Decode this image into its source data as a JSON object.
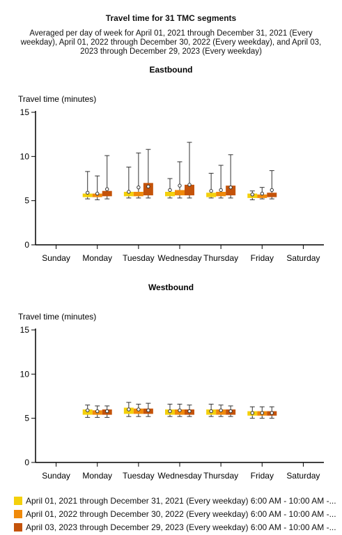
{
  "title": "Travel time for 31 TMC segments",
  "subtitle": "Averaged per day of week for April 01, 2021 through December 31, 2021 (Every weekday), April 01, 2022 through December 30, 2022 (Every weekday), and April 03, 2023 through December 29, 2023 (Every weekday)",
  "legend": [
    {
      "label": "April 01, 2021 through December 31, 2021 (Every weekday) 6:00 AM - 10:00 AM -...",
      "color": "#f4d00c"
    },
    {
      "label": "April 01, 2022 through December 30, 2022 (Every weekday) 6:00 AM - 10:00 AM -...",
      "color": "#f08a0b"
    },
    {
      "label": "April 03, 2023 through December 29, 2023 (Every weekday) 6:00 AM - 10:00 AM -...",
      "color": "#c4530a"
    }
  ],
  "chart_data": [
    {
      "type": "box",
      "title": "Eastbound",
      "ylabel": "Travel time (minutes)",
      "ylim": [
        0,
        15
      ],
      "yticks": [
        0,
        5,
        10,
        15
      ],
      "categories": [
        "Sunday",
        "Monday",
        "Tuesday",
        "Wednesday",
        "Thursday",
        "Friday",
        "Saturday"
      ],
      "series": [
        {
          "color": "#f4d00c",
          "data": [
            null,
            {
              "min": 5.2,
              "q1": 5.4,
              "median": 5.6,
              "q3": 5.8,
              "max": 8.3,
              "mean": 5.9
            },
            {
              "min": 5.3,
              "q1": 5.5,
              "median": 5.7,
              "q3": 6.0,
              "max": 8.8,
              "mean": 6.0
            },
            {
              "min": 5.3,
              "q1": 5.5,
              "median": 5.7,
              "q3": 6.0,
              "max": 7.5,
              "mean": 6.2
            },
            {
              "min": 5.3,
              "q1": 5.4,
              "median": 5.6,
              "q3": 5.9,
              "max": 8.1,
              "mean": 6.1
            },
            {
              "min": 5.1,
              "q1": 5.3,
              "median": 5.5,
              "q3": 5.8,
              "max": 6.1,
              "mean": 5.7
            },
            null
          ]
        },
        {
          "color": "#f08a0b",
          "data": [
            null,
            {
              "min": 5.1,
              "q1": 5.4,
              "median": 5.6,
              "q3": 5.8,
              "max": 7.8,
              "mean": 5.8
            },
            {
              "min": 5.3,
              "q1": 5.5,
              "median": 5.8,
              "q3": 6.0,
              "max": 10.4,
              "mean": 6.5
            },
            {
              "min": 5.3,
              "q1": 5.6,
              "median": 5.9,
              "q3": 6.2,
              "max": 9.4,
              "mean": 6.7
            },
            {
              "min": 5.3,
              "q1": 5.5,
              "median": 5.7,
              "q3": 6.0,
              "max": 9.0,
              "mean": 6.2
            },
            {
              "min": 5.2,
              "q1": 5.3,
              "median": 5.5,
              "q3": 5.7,
              "max": 6.5,
              "mean": 5.8
            },
            null
          ]
        },
        {
          "color": "#c4530a",
          "data": [
            null,
            {
              "min": 5.2,
              "q1": 5.5,
              "median": 5.8,
              "q3": 6.1,
              "max": 10.1,
              "mean": 6.3
            },
            {
              "min": 5.3,
              "q1": 5.6,
              "median": 6.2,
              "q3": 7.0,
              "max": 10.8,
              "mean": 6.6
            },
            {
              "min": 5.3,
              "q1": 5.6,
              "median": 6.2,
              "q3": 6.8,
              "max": 11.6,
              "mean": 6.8
            },
            {
              "min": 5.3,
              "q1": 5.6,
              "median": 6.1,
              "q3": 6.7,
              "max": 10.2,
              "mean": 6.5
            },
            {
              "min": 5.2,
              "q1": 5.4,
              "median": 5.6,
              "q3": 5.9,
              "max": 8.4,
              "mean": 6.2
            },
            null
          ]
        }
      ]
    },
    {
      "type": "box",
      "title": "Westbound",
      "ylabel": "Travel time (minutes)",
      "ylim": [
        0,
        15
      ],
      "yticks": [
        0,
        5,
        10,
        15
      ],
      "categories": [
        "Sunday",
        "Monday",
        "Tuesday",
        "Wednesday",
        "Thursday",
        "Friday",
        "Saturday"
      ],
      "series": [
        {
          "color": "#f4d00c",
          "data": [
            null,
            {
              "min": 5.1,
              "q1": 5.4,
              "median": 5.7,
              "q3": 6.0,
              "max": 6.5,
              "mean": 5.9
            },
            {
              "min": 5.2,
              "q1": 5.5,
              "median": 5.8,
              "q3": 6.2,
              "max": 6.8,
              "mean": 6.0
            },
            {
              "min": 5.2,
              "q1": 5.4,
              "median": 5.7,
              "q3": 6.0,
              "max": 6.6,
              "mean": 5.8
            },
            {
              "min": 5.2,
              "q1": 5.4,
              "median": 5.7,
              "q3": 6.0,
              "max": 6.6,
              "mean": 5.8
            },
            {
              "min": 5.0,
              "q1": 5.3,
              "median": 5.5,
              "q3": 5.8,
              "max": 6.3,
              "mean": 5.6
            },
            null
          ]
        },
        {
          "color": "#f08a0b",
          "data": [
            null,
            {
              "min": 5.1,
              "q1": 5.4,
              "median": 5.7,
              "q3": 5.9,
              "max": 6.4,
              "mean": 5.8
            },
            {
              "min": 5.2,
              "q1": 5.5,
              "median": 5.8,
              "q3": 6.1,
              "max": 6.6,
              "mean": 6.0
            },
            {
              "min": 5.2,
              "q1": 5.4,
              "median": 5.7,
              "q3": 6.0,
              "max": 6.6,
              "mean": 5.9
            },
            {
              "min": 5.2,
              "q1": 5.4,
              "median": 5.7,
              "q3": 6.0,
              "max": 6.5,
              "mean": 5.9
            },
            {
              "min": 5.0,
              "q1": 5.3,
              "median": 5.5,
              "q3": 5.8,
              "max": 6.3,
              "mean": 5.6
            },
            null
          ]
        },
        {
          "color": "#c4530a",
          "data": [
            null,
            {
              "min": 5.1,
              "q1": 5.4,
              "median": 5.7,
              "q3": 6.0,
              "max": 6.4,
              "mean": 5.8
            },
            {
              "min": 5.2,
              "q1": 5.5,
              "median": 5.8,
              "q3": 6.1,
              "max": 6.7,
              "mean": 5.9
            },
            {
              "min": 5.2,
              "q1": 5.4,
              "median": 5.7,
              "q3": 6.0,
              "max": 6.5,
              "mean": 5.8
            },
            {
              "min": 5.2,
              "q1": 5.4,
              "median": 5.7,
              "q3": 6.0,
              "max": 6.4,
              "mean": 5.8
            },
            {
              "min": 5.0,
              "q1": 5.3,
              "median": 5.5,
              "q3": 5.8,
              "max": 6.3,
              "mean": 5.6
            },
            null
          ]
        }
      ]
    }
  ]
}
